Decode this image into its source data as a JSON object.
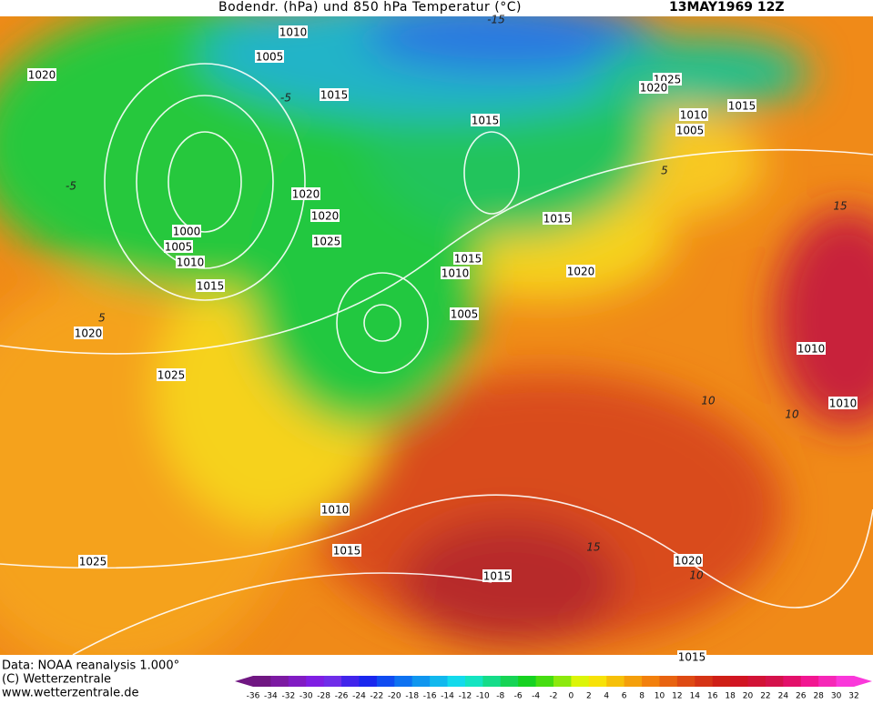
{
  "header": {
    "title": "Bodendr. (hPa) und 850 hPa Temperatur (°C)",
    "date": "13MAY1969 12Z"
  },
  "isobar_labels": [
    "1010",
    "1005",
    "1020",
    "1015",
    "1025",
    "1020",
    "1015",
    "1010",
    "1005",
    "1015",
    "1020",
    "1020",
    "1015",
    "1025",
    "1000",
    "1005",
    "1010",
    "1015",
    "1015",
    "1010",
    "1020",
    "1005",
    "1020",
    "1010",
    "1025",
    "1010",
    "1010",
    "1015",
    "1025",
    "1020",
    "1015",
    "1015"
  ],
  "temperature_labels": [
    "-15",
    "-5",
    "-5",
    "5",
    "5",
    "15",
    "10",
    "10",
    "15",
    "10"
  ],
  "footer": {
    "source": "Data: NOAA reanalysis 1.000°",
    "copyright": "(C) Wetterzentrale",
    "url": "www.wetterzentrale.de"
  },
  "legend": {
    "labels": [
      "-36",
      "-34",
      "-32",
      "-30",
      "-28",
      "-26",
      "-24",
      "-22",
      "-20",
      "-18",
      "-16",
      "-14",
      "-12",
      "-10",
      "-8",
      "-6",
      "-4",
      "-2",
      "0",
      "2",
      "4",
      "6",
      "8",
      "10",
      "12",
      "14",
      "16",
      "18",
      "20",
      "22",
      "24",
      "26",
      "28",
      "30",
      "32"
    ]
  }
}
